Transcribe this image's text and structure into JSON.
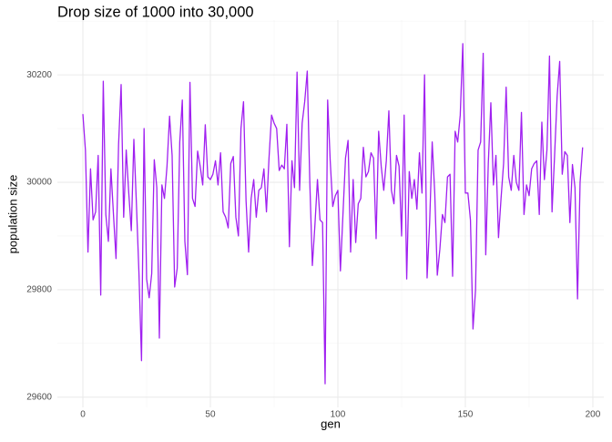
{
  "chart_data": {
    "type": "line",
    "title": "Drop size of 1000 into 30,000",
    "x_label": "gen",
    "y_label": "population size",
    "x": [
      0,
      1,
      2,
      3,
      4,
      5,
      6,
      7,
      8,
      9,
      10,
      11,
      12,
      13,
      14,
      15,
      16,
      17,
      18,
      19,
      20,
      21,
      22,
      23,
      24,
      25,
      26,
      27,
      28,
      29,
      30,
      31,
      32,
      33,
      34,
      35,
      36,
      37,
      38,
      39,
      40,
      41,
      42,
      43,
      44,
      45,
      46,
      47,
      48,
      49,
      50,
      51,
      52,
      53,
      54,
      55,
      56,
      57,
      58,
      59,
      60,
      61,
      62,
      63,
      64,
      65,
      66,
      67,
      68,
      69,
      70,
      71,
      72,
      73,
      74,
      75,
      76,
      77,
      78,
      79,
      80,
      81,
      82,
      83,
      84,
      85,
      86,
      87,
      88,
      89,
      90,
      91,
      92,
      93,
      94,
      95,
      96,
      97,
      98,
      99,
      100,
      101,
      102,
      103,
      104,
      105,
      106,
      107,
      108,
      109,
      110,
      111,
      112,
      113,
      114,
      115,
      116,
      117,
      118,
      119,
      120,
      121,
      122,
      123,
      124,
      125,
      126,
      127,
      128,
      129,
      130,
      131,
      132,
      133,
      134,
      135,
      136,
      137,
      138,
      139,
      140,
      141,
      142,
      143,
      144,
      145,
      146,
      147,
      148,
      149,
      150,
      151,
      152,
      153,
      154,
      155,
      156,
      157,
      158,
      159,
      160,
      161,
      162,
      163,
      164,
      165,
      166,
      167,
      168,
      169,
      170,
      171,
      172,
      173,
      174,
      175,
      176,
      177,
      178,
      179,
      180,
      181,
      182,
      183,
      184,
      185,
      186,
      187,
      188,
      189,
      190,
      191,
      192,
      193,
      194,
      195,
      196
    ],
    "series": [
      {
        "color": "#a020f0",
        "values": [
          30127,
          30060,
          29870,
          30025,
          29930,
          29945,
          30050,
          29790,
          30188,
          29940,
          29890,
          30025,
          29940,
          29858,
          30070,
          30182,
          29935,
          30060,
          29980,
          29910,
          30080,
          29960,
          29830,
          29668,
          30100,
          29820,
          29785,
          29830,
          30042,
          29990,
          29710,
          29995,
          29970,
          30030,
          30123,
          30050,
          29805,
          29840,
          30075,
          30153,
          29890,
          29828,
          30186,
          29970,
          29955,
          30058,
          30030,
          29995,
          30107,
          30010,
          30005,
          30015,
          30040,
          29995,
          30055,
          29945,
          29935,
          29915,
          30035,
          30048,
          29935,
          29900,
          30100,
          30150,
          29965,
          29870,
          29970,
          30005,
          29935,
          29985,
          29990,
          30025,
          29945,
          30045,
          30125,
          30110,
          30100,
          30022,
          30032,
          30025,
          30108,
          29880,
          30040,
          29990,
          30205,
          29985,
          30110,
          30150,
          30207,
          30000,
          29845,
          29920,
          30005,
          29930,
          29925,
          29625,
          30153,
          30040,
          29955,
          29975,
          29985,
          29835,
          29940,
          30045,
          30078,
          29870,
          30005,
          29888,
          29960,
          29970,
          30065,
          30010,
          30020,
          30055,
          30045,
          29895,
          30095,
          30030,
          29985,
          30040,
          30133,
          29985,
          29960,
          30050,
          30030,
          29900,
          30125,
          29820,
          30020,
          29970,
          30005,
          29950,
          30055,
          29980,
          30200,
          29822,
          29925,
          30075,
          29980,
          29827,
          29875,
          29940,
          29925,
          30010,
          30015,
          29825,
          30095,
          30075,
          30125,
          30258,
          29980,
          29980,
          29930,
          29727,
          29800,
          30060,
          30075,
          30240,
          29865,
          30035,
          30148,
          29995,
          30050,
          29897,
          29970,
          30035,
          30177,
          30010,
          29985,
          30050,
          30000,
          29985,
          30130,
          29940,
          29995,
          29975,
          30025,
          30035,
          30040,
          29940,
          30112,
          30005,
          30060,
          30235,
          29945,
          30050,
          30160,
          30225,
          30015,
          30057,
          30050,
          29925,
          30033,
          29990,
          29783,
          30000,
          30065
        ]
      }
    ],
    "xlim": [
      -10,
      204.3
    ],
    "ylim": [
      29581,
      30302
    ],
    "xticks": [
      0,
      50,
      100,
      150,
      200
    ],
    "yticks": [
      29600,
      29800,
      30000,
      30200
    ],
    "grid": true
  }
}
